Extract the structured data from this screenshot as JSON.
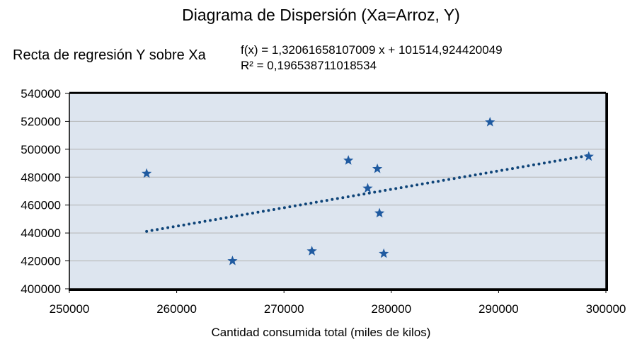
{
  "chart_data": {
    "type": "scatter",
    "title": "Diagrama de Dispersión (Xa=Arroz, Y)",
    "xlabel": "Cantidad consumida total (miles de kilos)",
    "ylabel": "",
    "xlim": [
      250000,
      300000
    ],
    "ylim": [
      400000,
      540000
    ],
    "x_ticks": [
      "250000",
      "260000",
      "270000",
      "280000",
      "290000",
      "300000"
    ],
    "y_ticks": [
      "400000",
      "420000",
      "440000",
      "460000",
      "480000",
      "500000",
      "520000",
      "540000"
    ],
    "grid": "horizontal",
    "series": [
      {
        "marker": "star",
        "color": "#1f5aa0",
        "points": [
          {
            "x": 257200,
            "y": 482600
          },
          {
            "x": 265200,
            "y": 420000
          },
          {
            "x": 272600,
            "y": 427000
          },
          {
            "x": 276000,
            "y": 492000
          },
          {
            "x": 277800,
            "y": 472000
          },
          {
            "x": 278700,
            "y": 486000
          },
          {
            "x": 278900,
            "y": 454200
          },
          {
            "x": 279300,
            "y": 425200
          },
          {
            "x": 289200,
            "y": 519400
          },
          {
            "x": 298400,
            "y": 494800
          }
        ]
      }
    ],
    "trendline": {
      "label": "Recta de regresión Y sobre Xa",
      "equation": "f(x) = 1,32061658107009 x + 101514,924420049",
      "r_squared": "R² = 0,196538711018534",
      "slope": 1.32061658107009,
      "intercept": 101514.924420049,
      "x_range": [
        257200,
        298400
      ],
      "style": "dotted",
      "color": "#0e4478"
    },
    "plot_background": "#dde5ef"
  }
}
